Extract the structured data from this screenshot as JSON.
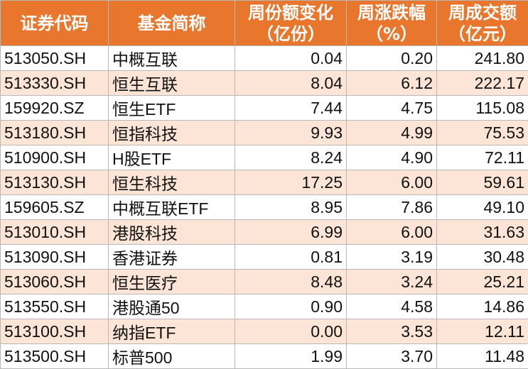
{
  "table": {
    "headers": [
      [
        "证券代码"
      ],
      [
        "基金简称"
      ],
      [
        "周份额变化",
        "（亿份）"
      ],
      [
        "周涨跌幅",
        "（%）"
      ],
      [
        "周成交额",
        "（亿元）"
      ]
    ],
    "rows": [
      [
        "513050.SH",
        "中概互联",
        "0.04",
        "0.20",
        "241.80"
      ],
      [
        "513330.SH",
        "恒生互联",
        "8.04",
        "6.12",
        "222.17"
      ],
      [
        "159920.SZ",
        "恒生ETF",
        "7.44",
        "4.75",
        "115.08"
      ],
      [
        "513180.SH",
        "恒指科技",
        "9.93",
        "4.99",
        "75.53"
      ],
      [
        "510900.SH",
        "H股ETF",
        "8.24",
        "4.90",
        "72.11"
      ],
      [
        "513130.SH",
        "恒生科技",
        "17.25",
        "6.00",
        "59.61"
      ],
      [
        "159605.SZ",
        "中概互联ETF",
        "8.95",
        "7.86",
        "49.10"
      ],
      [
        "513010.SH",
        "港股科技",
        "6.99",
        "6.00",
        "31.63"
      ],
      [
        "513090.SH",
        "香港证券",
        "0.81",
        "3.19",
        "30.48"
      ],
      [
        "513060.SH",
        "恒生医疗",
        "8.48",
        "3.24",
        "25.21"
      ],
      [
        "513550.SH",
        "港股通50",
        "0.90",
        "4.58",
        "14.86"
      ],
      [
        "513100.SH",
        "纳指ETF",
        "0.00",
        "3.53",
        "12.11"
      ],
      [
        "513500.SH",
        "标普500",
        "1.99",
        "3.70",
        "11.48"
      ]
    ]
  }
}
